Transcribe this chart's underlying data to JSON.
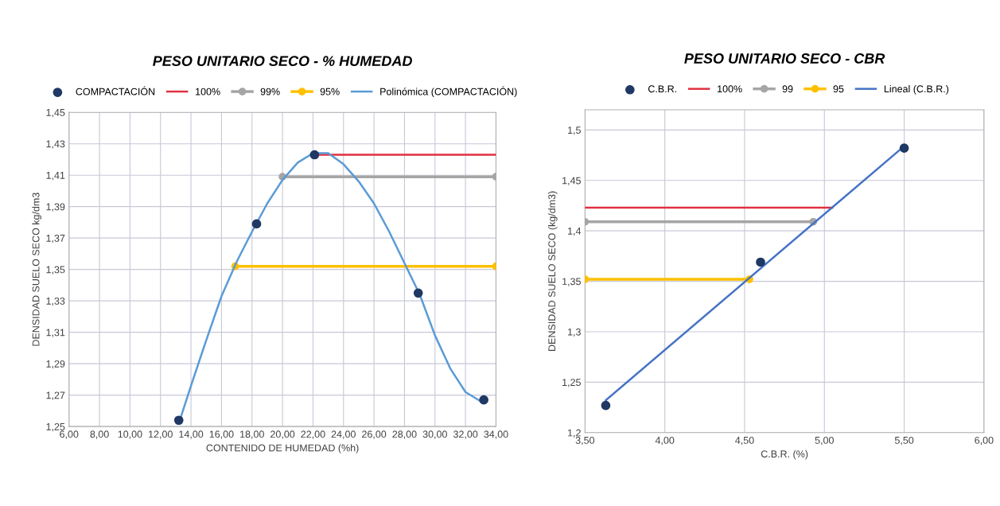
{
  "chart_data": [
    {
      "type": "scatter",
      "title": "PESO UNITARIO SECO - % HUMEDAD",
      "xlabel": "CONTENIDO DE HUMEDAD (%h)",
      "ylabel": "DENSIDAD SUELO SECO kg/dm3",
      "xlim": [
        6,
        34
      ],
      "xticks": [
        {
          "value": 6,
          "label": "6,00"
        },
        {
          "value": 8,
          "label": "8,00"
        },
        {
          "value": 10,
          "label": "10,00"
        },
        {
          "value": 12,
          "label": "12,00"
        },
        {
          "value": 14,
          "label": "14,00"
        },
        {
          "value": 16,
          "label": "16,00"
        },
        {
          "value": 18,
          "label": "18,00"
        },
        {
          "value": 20,
          "label": "20,00"
        },
        {
          "value": 22,
          "label": "22,00"
        },
        {
          "value": 24,
          "label": "24,00"
        },
        {
          "value": 26,
          "label": "26,00"
        },
        {
          "value": 28,
          "label": "28,00"
        },
        {
          "value": 30,
          "label": "30,00"
        },
        {
          "value": 32,
          "label": "32,00"
        },
        {
          "value": 34,
          "label": "34,00"
        }
      ],
      "ylim": [
        1.25,
        1.45
      ],
      "yticks": [
        {
          "value": 1.25,
          "label": "1,25"
        },
        {
          "value": 1.27,
          "label": "1,27"
        },
        {
          "value": 1.29,
          "label": "1,29"
        },
        {
          "value": 1.31,
          "label": "1,31"
        },
        {
          "value": 1.33,
          "label": "1,33"
        },
        {
          "value": 1.35,
          "label": "1,35"
        },
        {
          "value": 1.37,
          "label": "1,37"
        },
        {
          "value": 1.39,
          "label": "1,39"
        },
        {
          "value": 1.41,
          "label": "1,41"
        },
        {
          "value": 1.43,
          "label": "1,43"
        },
        {
          "value": 1.45,
          "label": "1,45"
        }
      ],
      "grid": true,
      "legend": "top",
      "series": [
        {
          "name": "COMPACTACIÓN",
          "marker": "circle",
          "color": "#1f3864",
          "x": [
            13.2,
            18.3,
            22.1,
            28.9,
            33.2
          ],
          "values": [
            1.254,
            1.379,
            1.423,
            1.335,
            1.267
          ]
        },
        {
          "name": "100%",
          "type": "line",
          "marker": "none",
          "color": "#e03040",
          "x": [
            22.1,
            34
          ],
          "values": [
            1.423,
            1.423
          ]
        },
        {
          "name": "99%",
          "type": "line",
          "marker": "circle",
          "color": "#a5a5a5",
          "x": [
            20.0,
            34
          ],
          "values": [
            1.409,
            1.409
          ]
        },
        {
          "name": "95%",
          "type": "line",
          "marker": "circle",
          "color": "#ffc000",
          "x": [
            16.9,
            34
          ],
          "values": [
            1.352,
            1.352
          ]
        },
        {
          "name": "Polinómica (COMPACTACIÓN)",
          "type": "line",
          "marker": "none",
          "color": "#5b9bd5",
          "x": [
            13.2,
            14,
            15,
            16,
            17,
            18,
            19,
            20,
            21,
            22,
            23,
            24,
            25,
            26,
            27,
            28,
            29,
            30,
            31,
            32,
            33,
            33.2
          ],
          "values": [
            1.252,
            1.276,
            1.305,
            1.333,
            1.355,
            1.374,
            1.392,
            1.407,
            1.418,
            1.424,
            1.424,
            1.417,
            1.406,
            1.392,
            1.374,
            1.354,
            1.334,
            1.308,
            1.287,
            1.272,
            1.266,
            1.267
          ]
        }
      ]
    },
    {
      "type": "scatter",
      "title": "PESO UNITARIO SECO - CBR",
      "xlabel": "C.B.R. (%)",
      "ylabel": "DENSIDAD SUELO SECO (kg/dm3)",
      "xlim": [
        3.5,
        6.0
      ],
      "xticks": [
        {
          "value": 3.5,
          "label": "3,50"
        },
        {
          "value": 4.0,
          "label": "4,00"
        },
        {
          "value": 4.5,
          "label": "4,50"
        },
        {
          "value": 5.0,
          "label": "5,00"
        },
        {
          "value": 5.5,
          "label": "5,50"
        },
        {
          "value": 6.0,
          "label": "6,00"
        }
      ],
      "ylim": [
        1.2,
        1.52
      ],
      "yticks": [
        {
          "value": 1.2,
          "label": "1,2"
        },
        {
          "value": 1.25,
          "label": "1,25"
        },
        {
          "value": 1.3,
          "label": "1,3"
        },
        {
          "value": 1.35,
          "label": "1,35"
        },
        {
          "value": 1.4,
          "label": "1,4"
        },
        {
          "value": 1.45,
          "label": "1,45"
        },
        {
          "value": 1.5,
          "label": "1,5"
        }
      ],
      "grid": true,
      "legend": "top",
      "series": [
        {
          "name": "C.B.R.",
          "marker": "circle",
          "color": "#1f3864",
          "x": [
            3.63,
            4.6,
            5.5
          ],
          "values": [
            1.227,
            1.369,
            1.482
          ]
        },
        {
          "name": "100%",
          "type": "line",
          "marker": "none",
          "color": "#e03040",
          "x": [
            3.5,
            5.05
          ],
          "values": [
            1.423,
            1.423
          ]
        },
        {
          "name": "99",
          "type": "line",
          "marker": "circle",
          "color": "#a5a5a5",
          "x": [
            3.5,
            4.93
          ],
          "values": [
            1.409,
            1.409
          ]
        },
        {
          "name": "95",
          "type": "line",
          "marker": "circle",
          "color": "#ffc000",
          "x": [
            3.5,
            4.53
          ],
          "values": [
            1.352,
            1.352
          ]
        },
        {
          "name": "Lineal (C.B.R.)",
          "type": "line",
          "marker": "none",
          "color": "#4472c4",
          "x": [
            3.63,
            5.5
          ],
          "values": [
            1.232,
            1.484
          ]
        }
      ]
    }
  ]
}
